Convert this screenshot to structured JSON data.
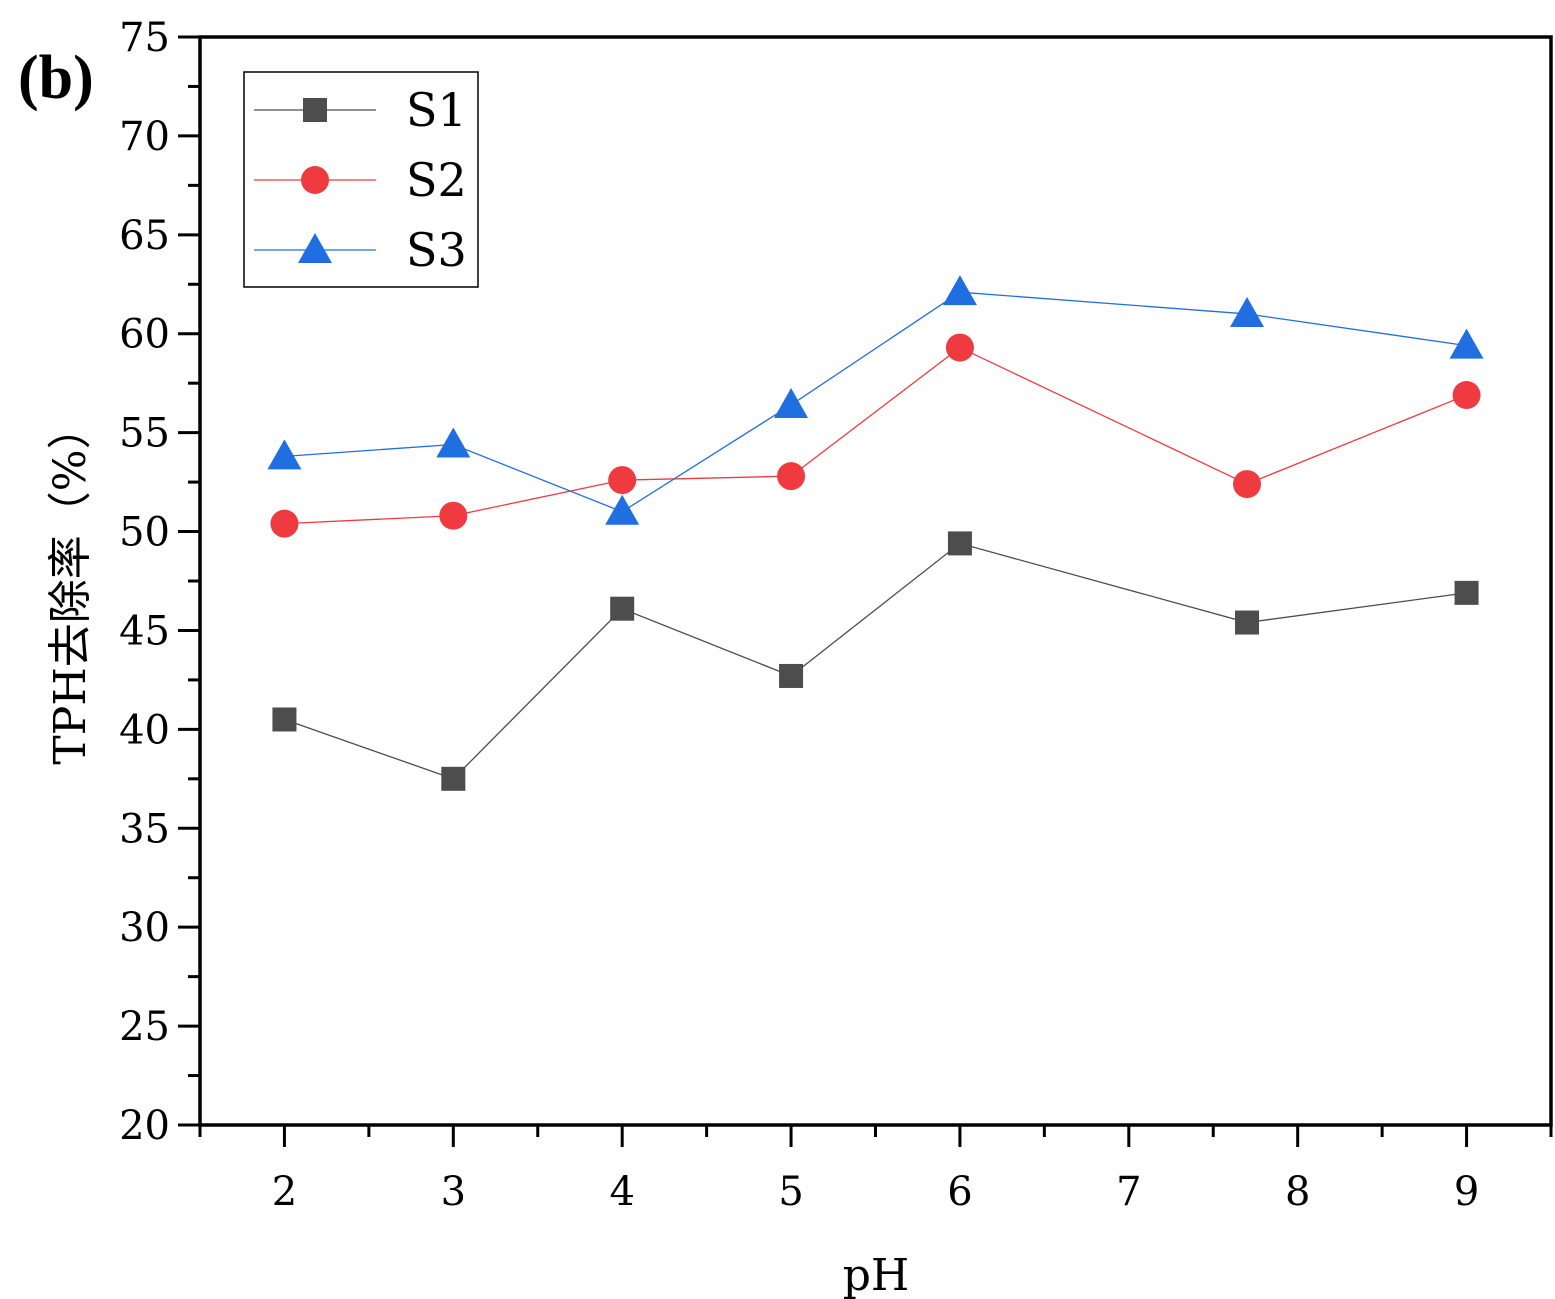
{
  "panel_label": "(b)",
  "chart_data": {
    "type": "line",
    "xlabel": "pH",
    "ylabel": "TPH去除率（%）",
    "xlim": [
      1.5,
      9.5
    ],
    "ylim": [
      20,
      75
    ],
    "xticks": [
      2,
      3,
      4,
      5,
      6,
      7,
      8,
      9
    ],
    "xtick_labels": [
      "2",
      "3",
      "4",
      "5",
      "6",
      "7",
      "8",
      "9"
    ],
    "yticks": [
      20,
      25,
      30,
      35,
      40,
      45,
      50,
      55,
      60,
      65,
      70,
      75
    ],
    "ytick_labels": [
      "20",
      "25",
      "30",
      "35",
      "40",
      "45",
      "50",
      "55",
      "60",
      "65",
      "70",
      "75"
    ],
    "legend_position": "top-left",
    "series": [
      {
        "name": "S1",
        "marker": "square",
        "color": "#4d4d4d",
        "x": [
          2,
          3,
          4,
          5,
          6,
          7.7,
          9
        ],
        "y": [
          40.5,
          37.5,
          46.1,
          42.7,
          49.4,
          45.4,
          46.9
        ]
      },
      {
        "name": "S2",
        "marker": "circle",
        "color": "#ef3b3f",
        "x": [
          2,
          3,
          4,
          5,
          6,
          7.7,
          9
        ],
        "y": [
          50.4,
          50.8,
          52.6,
          52.8,
          59.3,
          52.4,
          56.9
        ]
      },
      {
        "name": "S3",
        "marker": "triangle",
        "color": "#1f6fe0",
        "x": [
          2,
          3,
          4,
          5,
          6,
          7.7,
          9
        ],
        "y": [
          53.8,
          54.4,
          51.0,
          56.4,
          62.1,
          61.0,
          59.4
        ]
      }
    ]
  }
}
